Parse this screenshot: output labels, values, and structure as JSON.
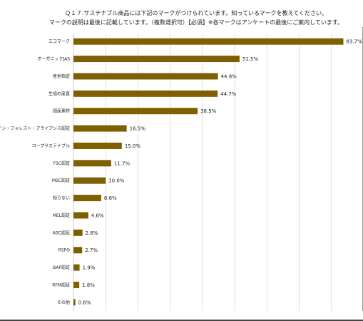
{
  "title_line1": "Ｑ１７.サステナブル商品には下記のマークがつけられています。知っているマークを教えてください。",
  "title_line2": "マークの説明は最後に記載しています。（複数選択可）【必須】※各マークはアンケートの最後にご案内しています。",
  "colors": {
    "bar": "#7f6000",
    "grid": "#d9d9d9"
  },
  "chart_data": {
    "type": "bar",
    "orientation": "horizontal",
    "title": "Ｑ１７.サステナブル商品には下記のマークがつけられています。知っているマークを教えてください。 マークの説明は最後に記載しています。（複数選択可）【必須】※各マークはアンケートの最後にご案内しています。",
    "categories": [
      "エコマーク",
      "オーガニックJAS",
      "産地指定",
      "生協の産直",
      "国産素材",
      "レイン・フォレスト・アライアンス認証",
      "コープサステナブル",
      "FSC認証",
      "MSC認証",
      "知らない",
      "MEL認証",
      "ASC認証",
      "RSPO",
      "BAP認証",
      "RFM認証",
      "その他"
    ],
    "values": [
      83.7,
      51.5,
      44.8,
      44.7,
      38.5,
      16.5,
      15.0,
      11.7,
      10.0,
      8.6,
      4.6,
      2.8,
      2.7,
      1.9,
      1.8,
      0.6
    ],
    "value_labels": [
      "83.7%",
      "51.5%",
      "44.8%",
      "44.7%",
      "38.5%",
      "16.5%",
      "15.0%",
      "11.7%",
      "10.0%",
      "8.6%",
      "4.6%",
      "2.8%",
      "2.7%",
      "1.9%",
      "1.8%",
      "0.6%"
    ],
    "xlim": [
      0,
      90
    ],
    "grid": true,
    "legend": "none"
  }
}
